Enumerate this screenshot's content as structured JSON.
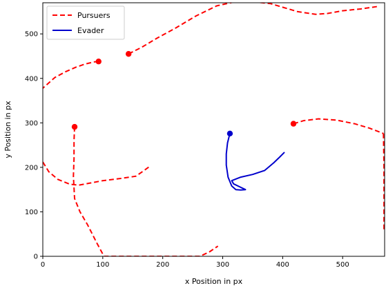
{
  "chart_data": {
    "type": "line",
    "title": "",
    "xlabel": "x Position in px",
    "ylabel": "y Position in px",
    "xlim": [
      0,
      570
    ],
    "ylim": [
      0,
      570
    ],
    "x_ticks": [
      0,
      100,
      200,
      300,
      400,
      500
    ],
    "y_ticks": [
      0,
      100,
      200,
      300,
      400,
      500
    ],
    "grid": false,
    "legend_placement": "top-left",
    "legend": [
      {
        "label": "Pursuers",
        "color": "#ff0000",
        "style": "dashed"
      },
      {
        "label": "Evader",
        "color": "#0000cc",
        "style": "solid"
      }
    ],
    "series": [
      {
        "group": "Pursuers",
        "color": "#ff0000",
        "style": "dashed",
        "points": [
          [
            93,
            438
          ],
          [
            85,
            437
          ],
          [
            70,
            432
          ],
          [
            55,
            425
          ],
          [
            38,
            415
          ],
          [
            20,
            402
          ],
          [
            0,
            378
          ]
        ]
      },
      {
        "group": "Pursuers",
        "color": "#ff0000",
        "style": "dashed",
        "points": [
          [
            143,
            455
          ],
          [
            165,
            470
          ],
          [
            190,
            490
          ],
          [
            220,
            512
          ],
          [
            255,
            540
          ],
          [
            290,
            563
          ],
          [
            320,
            572
          ],
          [
            360,
            571
          ],
          [
            380,
            568
          ],
          [
            400,
            560
          ],
          [
            425,
            550
          ],
          [
            455,
            544
          ],
          [
            475,
            546
          ],
          [
            500,
            552
          ],
          [
            530,
            556
          ],
          [
            560,
            562
          ]
        ]
      },
      {
        "group": "Pursuers",
        "color": "#ff0000",
        "style": "dashed",
        "points": [
          [
            418,
            298
          ],
          [
            435,
            305
          ],
          [
            460,
            309
          ],
          [
            490,
            306
          ],
          [
            520,
            298
          ],
          [
            545,
            288
          ],
          [
            568,
            276
          ]
        ]
      },
      {
        "group": "Pursuers",
        "color": "#ff0000",
        "style": "dashed",
        "points": [
          [
            568,
            276
          ],
          [
            569,
            200
          ],
          [
            569,
            130
          ],
          [
            569,
            60
          ]
        ]
      },
      {
        "group": "Pursuers",
        "color": "#ff0000",
        "style": "dashed",
        "points": [
          [
            53,
            291
          ],
          [
            52,
            260
          ],
          [
            52,
            220
          ],
          [
            51,
            180
          ],
          [
            53,
            130
          ],
          [
            62,
            100
          ],
          [
            75,
            70
          ],
          [
            90,
            30
          ],
          [
            102,
            0
          ],
          [
            150,
            0
          ],
          [
            200,
            0
          ],
          [
            262,
            0
          ],
          [
            278,
            10
          ],
          [
            292,
            23
          ]
        ]
      },
      {
        "group": "Pursuers",
        "color": "#ff0000",
        "style": "dashed",
        "points": [
          [
            0,
            212
          ],
          [
            10,
            190
          ],
          [
            25,
            173
          ],
          [
            45,
            162
          ],
          [
            60,
            160
          ],
          [
            80,
            165
          ],
          [
            100,
            170
          ],
          [
            130,
            175
          ],
          [
            155,
            180
          ],
          [
            168,
            192
          ],
          [
            178,
            202
          ]
        ]
      },
      {
        "group": "Evader",
        "color": "#0000cc",
        "style": "solid",
        "points": [
          [
            312,
            276
          ],
          [
            308,
            255
          ],
          [
            306,
            230
          ],
          [
            306,
            205
          ],
          [
            309,
            178
          ],
          [
            315,
            158
          ],
          [
            322,
            150
          ],
          [
            330,
            149
          ],
          [
            338,
            150
          ],
          [
            330,
            155
          ],
          [
            318,
            163
          ],
          [
            315,
            170
          ],
          [
            330,
            178
          ],
          [
            350,
            184
          ],
          [
            370,
            193
          ],
          [
            385,
            210
          ],
          [
            395,
            223
          ],
          [
            403,
            234
          ]
        ]
      }
    ],
    "markers": [
      {
        "x": 93,
        "y": 438,
        "color": "#ff0000"
      },
      {
        "x": 143,
        "y": 455,
        "color": "#ff0000"
      },
      {
        "x": 418,
        "y": 298,
        "color": "#ff0000"
      },
      {
        "x": 53,
        "y": 291,
        "color": "#ff0000"
      },
      {
        "x": 312,
        "y": 276,
        "color": "#0000cc"
      }
    ]
  }
}
